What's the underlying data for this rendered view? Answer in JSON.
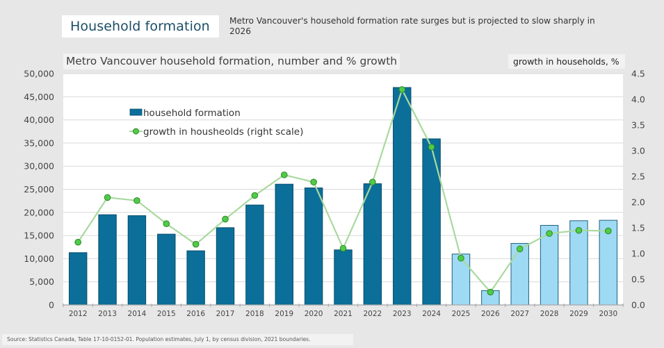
{
  "header": {
    "title": "Household formation",
    "subtitle": "Metro Vancouver's household formation rate surges but is projected to slow sharply in 2026"
  },
  "footer": {
    "source": "Source:  Statistics Canada, Table 17-10-0152-01.  Population estimates, July 1, by census division, 2021 boundaries."
  },
  "colors": {
    "historical_bar": "#0b6f9a",
    "historical_bar_border": "#0a4d6b",
    "projected_bar": "#9edaf4",
    "projected_bar_border": "#1e5f7e",
    "growth_line": "#a9d99e",
    "growth_marker": "#4fcc47",
    "growth_marker_border": "#2e8529",
    "gridline": "#d9d9d9",
    "axis": "#a6a6a6"
  },
  "chart_data": {
    "type": "bar",
    "title": "Metro Vancouver household formation, number and % growth",
    "xlabel": "",
    "ylabel": "",
    "y2label": "growth in households, %",
    "categories": [
      "2012",
      "2013",
      "2014",
      "2015",
      "2016",
      "2017",
      "2018",
      "2019",
      "2020",
      "2021",
      "2022",
      "2023",
      "2024",
      "2025",
      "2026",
      "2027",
      "2028",
      "2029",
      "2030"
    ],
    "projected_from": "2025",
    "series": [
      {
        "name": "household formation",
        "type": "bar",
        "axis": "left",
        "values": [
          11300,
          19500,
          19300,
          15300,
          11700,
          16700,
          21600,
          26100,
          25300,
          11900,
          26200,
          47000,
          35900,
          11000,
          3100,
          13300,
          17200,
          18200,
          18300
        ]
      },
      {
        "name": "growth in housheolds (right scale)",
        "type": "line",
        "axis": "right",
        "values": [
          1.22,
          2.09,
          2.03,
          1.58,
          1.18,
          1.67,
          2.13,
          2.53,
          2.39,
          1.1,
          2.39,
          4.19,
          3.07,
          0.91,
          0.25,
          1.09,
          1.39,
          1.45,
          1.44
        ]
      }
    ],
    "ylim": [
      0,
      50000
    ],
    "y_ticks": [
      "0",
      "5,000",
      "10,000",
      "15,000",
      "20,000",
      "25,000",
      "30,000",
      "35,000",
      "40,000",
      "45,000",
      "50,000"
    ],
    "y2lim": [
      0,
      4.5
    ],
    "y2_ticks": [
      "0.0",
      "0.5",
      "1.0",
      "1.5",
      "2.0",
      "2.5",
      "3.0",
      "3.5",
      "4.0",
      "4.5"
    ],
    "grid": true,
    "legend": {
      "placement": "top-left",
      "entries": [
        "household formation",
        "growth in housheolds (right scale)"
      ]
    }
  }
}
